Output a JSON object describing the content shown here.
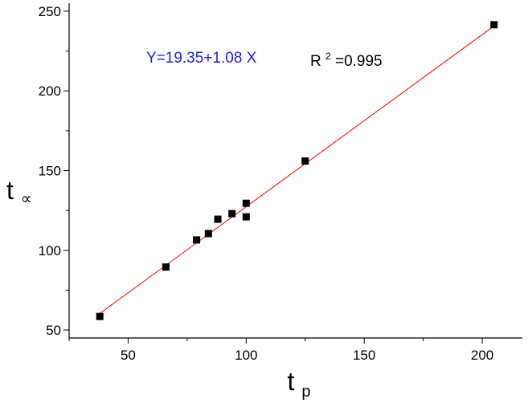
{
  "chart_data": {
    "type": "scatter",
    "x_label": {
      "main": "t",
      "sub": "p"
    },
    "y_label": {
      "main": "t",
      "sub": "∝"
    },
    "xlim": [
      25,
      217
    ],
    "ylim": [
      45,
      255
    ],
    "x_ticks": [
      50,
      100,
      150,
      200
    ],
    "y_ticks": [
      50,
      100,
      150,
      200,
      250
    ],
    "x_tick_labels": [
      "50",
      "100",
      "150",
      "200"
    ],
    "y_tick_labels": [
      "50",
      "100",
      "150",
      "200",
      "250"
    ],
    "grid": false,
    "series": [
      {
        "points": [
          {
            "x": 38,
            "y": 58.5
          },
          {
            "x": 66,
            "y": 89.5
          },
          {
            "x": 79,
            "y": 106.5
          },
          {
            "x": 84,
            "y": 110.5
          },
          {
            "x": 88,
            "y": 119.5
          },
          {
            "x": 94,
            "y": 123
          },
          {
            "x": 100,
            "y": 129.5
          },
          {
            "x": 100,
            "y": 121
          },
          {
            "x": 125,
            "y": 156
          },
          {
            "x": 205,
            "y": 241.5
          }
        ],
        "marker": "square",
        "color": "#000000"
      }
    ],
    "fit_line": {
      "intercept": 19.35,
      "slope": 1.08,
      "x_range": [
        38,
        205
      ],
      "color": "#ff0000"
    },
    "annotations": {
      "equation": "Y=19.35+1.08 X",
      "r2_label": "R",
      "r2_exp": "2",
      "r2_value": "=0.995"
    }
  }
}
